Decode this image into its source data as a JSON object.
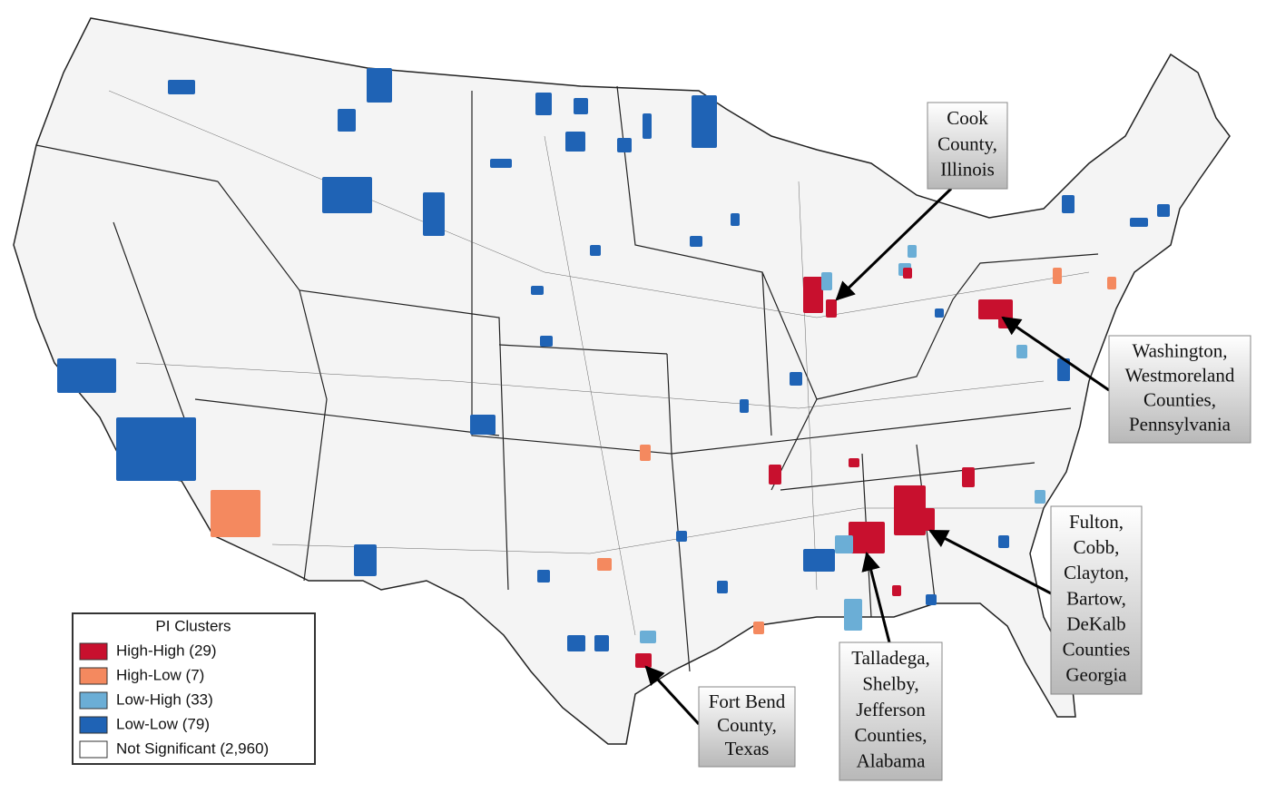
{
  "legend": {
    "title": "PI Clusters",
    "items": [
      {
        "label": "High-High (29)",
        "color": "#c8102e"
      },
      {
        "label": "High-Low (7)",
        "color": "#f4895f"
      },
      {
        "label": "Low-High (33)",
        "color": "#6baed6"
      },
      {
        "label": "Low-Low (79)",
        "color": "#1f63b5"
      },
      {
        "label": "Not Significant (2,960)",
        "color": "#ffffff"
      }
    ]
  },
  "callouts": [
    {
      "lines": [
        "Cook",
        "County,",
        "Illinois"
      ]
    },
    {
      "lines": [
        "Washington,",
        "Westmoreland",
        "Counties,",
        "Pennsylvania"
      ]
    },
    {
      "lines": [
        "Fulton,",
        "Cobb,",
        "Clayton,",
        "Bartow,",
        "DeKalb",
        "Counties",
        "Georgia"
      ]
    },
    {
      "lines": [
        "Talladega,",
        "Shelby,",
        "Jefferson",
        "Counties,",
        "Alabama"
      ]
    },
    {
      "lines": [
        "Fort Bend",
        "County,",
        "Texas"
      ]
    }
  ]
}
